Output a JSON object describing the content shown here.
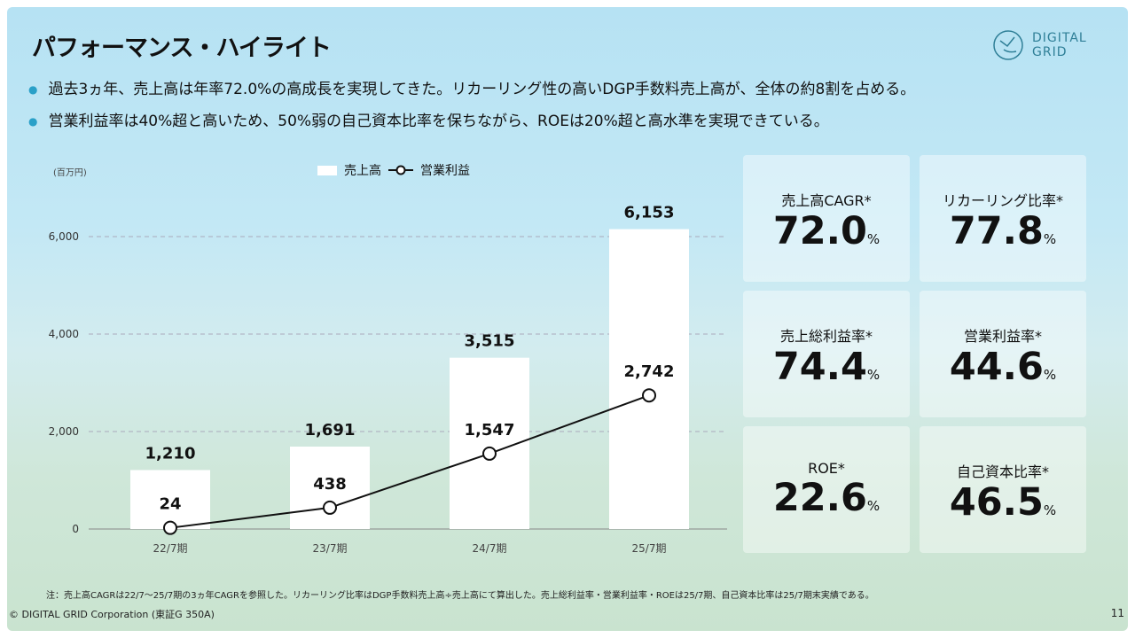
{
  "title": "パフォーマンス・ハイライト",
  "logo": {
    "line1": "DIGITAL",
    "line2": "GRID"
  },
  "bullets": [
    "過去3ヵ年、売上高は年率72.0%の高成長を実現してきた。リカーリング性の高いDGP手数料売上高が、全体の約8割を占める。",
    "営業利益率は40%超と高いため、50%弱の自己資本比率を保ちながら、ROEは20%超と高水準を実現できている。"
  ],
  "chart_data": {
    "type": "bar",
    "unit_label": "(百万円)",
    "categories": [
      "22/7期",
      "23/7期",
      "24/7期",
      "25/7期"
    ],
    "series": [
      {
        "name": "売上高",
        "type": "bar",
        "values": [
          1210,
          1691,
          3515,
          6153
        ],
        "labels": [
          "1,210",
          "1,691",
          "3,515",
          "6,153"
        ]
      },
      {
        "name": "営業利益",
        "type": "line",
        "values": [
          24,
          438,
          1547,
          2742
        ],
        "labels": [
          "24",
          "438",
          "1,547",
          "2,742"
        ]
      }
    ],
    "yticks": [
      0,
      2000,
      4000,
      6000
    ],
    "ytick_labels": [
      "0",
      "2,000",
      "4,000",
      "6,000"
    ],
    "ylim": [
      0,
      7000
    ],
    "legend": "top"
  },
  "cards": [
    {
      "label": "売上高CAGR*",
      "value": "72.0",
      "unit": "%"
    },
    {
      "label": "リカーリング比率*",
      "value": "77.8",
      "unit": "%"
    },
    {
      "label": "売上総利益率*",
      "value": "74.4",
      "unit": "%"
    },
    {
      "label": "営業利益率*",
      "value": "44.6",
      "unit": "%"
    },
    {
      "label": "ROE*",
      "value": "22.6",
      "unit": "%"
    },
    {
      "label": "自己資本比率*",
      "value": "46.5",
      "unit": "%"
    }
  ],
  "note": "注：売上高CAGRは22/7～25/7期の3ヵ年CAGRを参照した。リカーリング比率はDGP手数料売上高÷売上高にて算出した。売上総利益率・営業利益率・ROEは25/7期、自己資本比率は25/7期末実績である。",
  "copyright": "© DIGITAL GRID Corporation (東証G 350A)",
  "page": "11"
}
